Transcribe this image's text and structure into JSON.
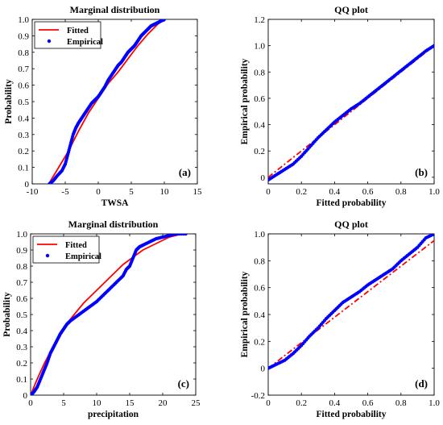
{
  "colors": {
    "fitted": "#ff0000",
    "empirical": "#0000ff",
    "axis": "#000000"
  },
  "chart_data": [
    {
      "type": "line",
      "title": "Marginal distribution",
      "xlabel": "TWSA",
      "ylabel": "Probability",
      "panel_label": "(a)",
      "xlim": [
        -10,
        15
      ],
      "ylim": [
        0,
        1
      ],
      "xticks": [
        "-10",
        "-5",
        "0",
        "5",
        "10",
        "15"
      ],
      "yticks": [
        "0",
        "0.1",
        "0.2",
        "0.3",
        "0.4",
        "0.5",
        "0.6",
        "0.7",
        "0.8",
        "0.9",
        "1.0"
      ],
      "legend": {
        "position": "top-left",
        "entries": [
          "Fitted",
          "Empirical"
        ]
      },
      "series": [
        {
          "name": "Fitted",
          "style": "solid",
          "x": [
            -7.5,
            -6,
            -4.5,
            -3,
            -1.5,
            0,
            1.5,
            3,
            4.5,
            6,
            7.5,
            9,
            10
          ],
          "y": [
            0.0,
            0.1,
            0.2,
            0.32,
            0.43,
            0.52,
            0.61,
            0.68,
            0.76,
            0.84,
            0.91,
            0.97,
            1.0
          ]
        },
        {
          "name": "Empirical",
          "style": "dots",
          "x": [
            -7.4,
            -6.8,
            -6.2,
            -5.5,
            -5.0,
            -4.6,
            -4.2,
            -3.8,
            -3.4,
            -3.0,
            -2.5,
            -2.0,
            -1.5,
            -1.0,
            -0.5,
            0.0,
            0.5,
            1.0,
            1.5,
            2.0,
            2.5,
            3.0,
            3.5,
            4.0,
            4.5,
            5.0,
            5.5,
            6.0,
            6.5,
            7.0,
            7.5,
            8.0,
            8.5,
            9.0,
            9.5,
            10.0
          ],
          "y": [
            0.0,
            0.02,
            0.05,
            0.08,
            0.12,
            0.18,
            0.24,
            0.3,
            0.34,
            0.37,
            0.4,
            0.43,
            0.46,
            0.49,
            0.51,
            0.53,
            0.56,
            0.59,
            0.63,
            0.66,
            0.69,
            0.72,
            0.74,
            0.77,
            0.8,
            0.82,
            0.84,
            0.87,
            0.9,
            0.92,
            0.94,
            0.96,
            0.97,
            0.98,
            0.99,
            1.0
          ]
        }
      ]
    },
    {
      "type": "line",
      "title": "QQ plot",
      "xlabel": "Fitted probability",
      "ylabel": "Empirical probability",
      "panel_label": "(b)",
      "xlim": [
        0,
        1
      ],
      "ylim": [
        -0.05,
        1.2
      ],
      "xticks": [
        "0",
        "0.2",
        "0.4",
        "0.6",
        "0.8",
        "1.0"
      ],
      "yticks": [
        "0",
        "0.2",
        "0.4",
        "0.6",
        "0.8",
        "1.0",
        "1.2"
      ],
      "series": [
        {
          "name": "Fitted",
          "style": "dashdot",
          "x": [
            0.0,
            1.0
          ],
          "y": [
            0.0,
            1.0
          ]
        },
        {
          "name": "Empirical",
          "style": "dots",
          "x": [
            0.0,
            0.05,
            0.1,
            0.15,
            0.2,
            0.25,
            0.3,
            0.35,
            0.4,
            0.45,
            0.5,
            0.55,
            0.6,
            0.65,
            0.7,
            0.75,
            0.8,
            0.85,
            0.9,
            0.95,
            1.0
          ],
          "y": [
            -0.02,
            0.02,
            0.06,
            0.1,
            0.16,
            0.23,
            0.3,
            0.36,
            0.42,
            0.47,
            0.52,
            0.56,
            0.61,
            0.66,
            0.71,
            0.76,
            0.81,
            0.86,
            0.91,
            0.96,
            1.0
          ]
        }
      ]
    },
    {
      "type": "line",
      "title": "Marginal distribution",
      "xlabel": "precipitation",
      "ylabel": "Probability",
      "panel_label": "(c)",
      "xlim": [
        0,
        25
      ],
      "ylim": [
        0,
        1
      ],
      "xticks": [
        "0",
        "5",
        "10",
        "15",
        "20",
        "25"
      ],
      "yticks": [
        "0",
        "0.1",
        "0.2",
        "0.3",
        "0.4",
        "0.5",
        "0.6",
        "0.7",
        "0.8",
        "0.9",
        "1.0"
      ],
      "legend": {
        "position": "top-left",
        "entries": [
          "Fitted",
          "Empirical"
        ]
      },
      "series": [
        {
          "name": "Fitted",
          "style": "solid",
          "x": [
            0,
            1,
            2,
            3,
            4,
            5,
            6,
            7,
            8,
            9,
            10,
            11,
            12,
            13,
            14,
            15,
            16,
            17,
            18,
            19,
            20,
            21,
            22,
            23,
            23.5
          ],
          "y": [
            0.0,
            0.1,
            0.19,
            0.27,
            0.34,
            0.41,
            0.47,
            0.52,
            0.57,
            0.61,
            0.65,
            0.69,
            0.73,
            0.77,
            0.81,
            0.84,
            0.87,
            0.9,
            0.92,
            0.94,
            0.96,
            0.98,
            0.99,
            1.0,
            1.0
          ]
        },
        {
          "name": "Empirical",
          "style": "dots",
          "x": [
            0.0,
            0.5,
            1.0,
            1.5,
            2.0,
            2.5,
            3.0,
            3.5,
            4.0,
            4.5,
            5.0,
            5.5,
            6.0,
            7.0,
            8.0,
            9.0,
            10.0,
            11.0,
            12.0,
            13.0,
            14.0,
            14.5,
            15.0,
            15.5,
            16.0,
            16.5,
            17.0,
            18.0,
            19.0,
            20.0,
            21.0,
            22.0,
            23.5
          ],
          "y": [
            0.0,
            0.02,
            0.05,
            0.1,
            0.15,
            0.2,
            0.26,
            0.3,
            0.34,
            0.38,
            0.41,
            0.44,
            0.46,
            0.49,
            0.52,
            0.55,
            0.58,
            0.62,
            0.66,
            0.7,
            0.74,
            0.78,
            0.8,
            0.85,
            0.9,
            0.92,
            0.93,
            0.95,
            0.97,
            0.98,
            0.99,
            1.0,
            1.0
          ]
        }
      ]
    },
    {
      "type": "line",
      "title": "QQ plot",
      "xlabel": "Fitted probability",
      "ylabel": "Empirical probability",
      "panel_label": "(d)",
      "xlim": [
        0,
        1
      ],
      "ylim": [
        -0.2,
        1.0
      ],
      "xticks": [
        "0",
        "0.2",
        "0.4",
        "0.6",
        "0.8",
        "1.0"
      ],
      "yticks": [
        "-0.2",
        "0",
        "0.2",
        "0.4",
        "0.6",
        "0.8",
        "1.0"
      ],
      "series": [
        {
          "name": "Fitted",
          "style": "dashdot",
          "x": [
            0.0,
            1.0
          ],
          "y": [
            0.0,
            0.95
          ]
        },
        {
          "name": "Empirical",
          "style": "dots",
          "x": [
            0.0,
            0.05,
            0.1,
            0.15,
            0.2,
            0.25,
            0.3,
            0.35,
            0.4,
            0.45,
            0.5,
            0.55,
            0.6,
            0.65,
            0.7,
            0.75,
            0.8,
            0.85,
            0.9,
            0.95,
            1.0
          ],
          "y": [
            0.0,
            0.03,
            0.06,
            0.11,
            0.17,
            0.24,
            0.3,
            0.37,
            0.43,
            0.49,
            0.53,
            0.57,
            0.62,
            0.66,
            0.7,
            0.74,
            0.8,
            0.85,
            0.9,
            0.97,
            1.0
          ]
        }
      ]
    }
  ]
}
